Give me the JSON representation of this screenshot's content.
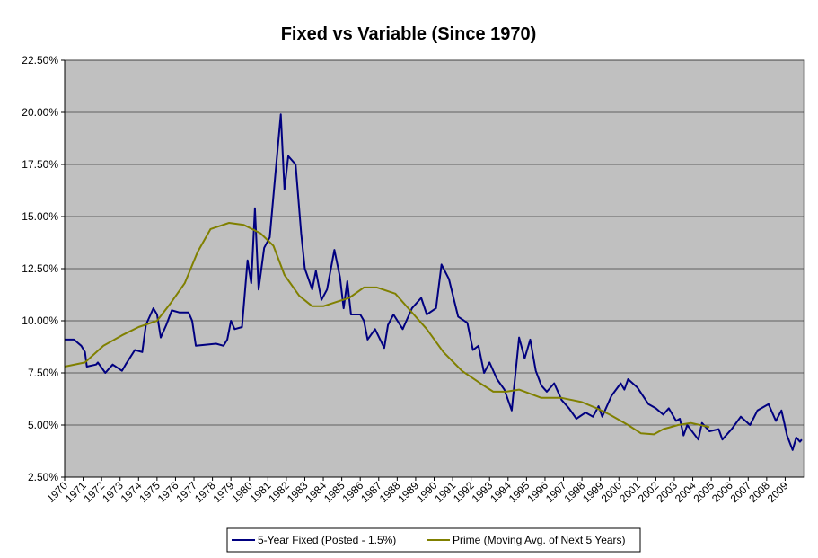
{
  "chart_data": {
    "type": "line",
    "title": "Fixed vs Variable (Since 1970)",
    "xlim": [
      1970,
      2010
    ],
    "xticks": [
      1970,
      1971,
      1972,
      1973,
      1974,
      1975,
      1976,
      1977,
      1978,
      1979,
      1980,
      1981,
      1982,
      1983,
      1984,
      1985,
      1986,
      1987,
      1988,
      1989,
      1990,
      1991,
      1992,
      1993,
      1994,
      1995,
      1996,
      1997,
      1998,
      1999,
      2000,
      2001,
      2002,
      2003,
      2004,
      2005,
      2006,
      2007,
      2008,
      2009
    ],
    "ylim": [
      2.5,
      22.5
    ],
    "yticks": [
      {
        "value": 2.5,
        "label": "2.50%"
      },
      {
        "value": 5,
        "label": "5.00%"
      },
      {
        "value": 7.5,
        "label": "7.50%"
      },
      {
        "value": 10,
        "label": "10.00%"
      },
      {
        "value": 12.5,
        "label": "12.50%"
      },
      {
        "value": 15,
        "label": "15.00%"
      },
      {
        "value": 17.5,
        "label": "17.50%"
      },
      {
        "value": 20,
        "label": "20.00%"
      },
      {
        "value": 22.5,
        "label": "22.50%"
      }
    ],
    "grid": true,
    "legend": "bottom",
    "series": [
      {
        "name": "5-Year Fixed (Posted - 1.5%)",
        "color": "#000080",
        "x": [
          1970.0,
          1970.5,
          1970.9,
          1971.1,
          1971.2,
          1971.7,
          1971.8,
          1972.2,
          1972.6,
          1973.1,
          1973.3,
          1973.8,
          1974.2,
          1974.4,
          1974.8,
          1975.0,
          1975.2,
          1975.5,
          1975.8,
          1976.2,
          1976.7,
          1976.9,
          1977.1,
          1978.2,
          1978.6,
          1978.8,
          1979.0,
          1979.2,
          1979.6,
          1979.9,
          1980.1,
          1980.3,
          1980.5,
          1980.8,
          1981.1,
          1981.4,
          1981.7,
          1981.9,
          1982.1,
          1982.5,
          1982.8,
          1983.0,
          1983.4,
          1983.6,
          1983.9,
          1984.2,
          1984.6,
          1984.9,
          1985.1,
          1985.3,
          1985.5,
          1986.0,
          1986.2,
          1986.4,
          1986.8,
          1987.3,
          1987.5,
          1987.8,
          1988.3,
          1988.5,
          1988.8,
          1989.3,
          1989.6,
          1990.1,
          1990.4,
          1990.8,
          1991.3,
          1991.8,
          1992.1,
          1992.4,
          1992.7,
          1993.0,
          1993.4,
          1993.8,
          1994.2,
          1994.6,
          1994.9,
          1995.2,
          1995.5,
          1995.8,
          1996.1,
          1996.5,
          1996.9,
          1997.3,
          1997.7,
          1998.2,
          1998.6,
          1998.9,
          1999.1,
          1999.6,
          2000.1,
          2000.3,
          2000.5,
          2001.0,
          2001.6,
          2002.0,
          2002.4,
          2002.7,
          2003.1,
          2003.3,
          2003.5,
          2003.7,
          2004.3,
          2004.5,
          2004.9,
          2005.4,
          2005.6,
          2006.1,
          2006.6,
          2007.1,
          2007.5,
          2008.1,
          2008.5,
          2008.8,
          2008.9,
          2009.1,
          2009.4,
          2009.6,
          2009.8,
          2009.9
        ],
        "values": [
          9.1,
          9.1,
          8.8,
          8.5,
          7.8,
          7.9,
          8.0,
          7.5,
          7.9,
          7.6,
          7.9,
          8.6,
          8.5,
          9.8,
          10.6,
          10.3,
          9.2,
          9.8,
          10.5,
          10.4,
          10.4,
          10.0,
          8.8,
          8.9,
          8.8,
          9.1,
          10.0,
          9.6,
          9.7,
          12.9,
          11.8,
          15.4,
          11.5,
          13.5,
          14.0,
          17.0,
          19.9,
          16.3,
          17.9,
          17.5,
          14.2,
          12.5,
          11.5,
          12.4,
          11.0,
          11.5,
          13.4,
          12.1,
          10.6,
          11.9,
          10.3,
          10.3,
          10.0,
          9.1,
          9.6,
          8.7,
          9.8,
          10.3,
          9.6,
          10.0,
          10.6,
          11.1,
          10.3,
          10.6,
          12.7,
          12.0,
          10.2,
          9.9,
          8.6,
          8.8,
          7.5,
          8.0,
          7.2,
          6.7,
          5.7,
          9.2,
          8.2,
          9.1,
          7.6,
          6.9,
          6.6,
          7.0,
          6.2,
          5.8,
          5.3,
          5.6,
          5.4,
          5.9,
          5.4,
          6.4,
          7.0,
          6.7,
          7.2,
          6.8,
          6.0,
          5.8,
          5.5,
          5.8,
          5.2,
          5.3,
          4.5,
          5.0,
          4.3,
          5.1,
          4.7,
          4.8,
          4.3,
          4.8,
          5.4,
          5.0,
          5.7,
          6.0,
          5.2,
          5.7,
          5.3,
          4.5,
          3.8,
          4.4,
          4.2,
          4.3
        ]
      },
      {
        "name": "Prime (Moving Avg. of Next 5 Years)",
        "color": "#808000",
        "x": [
          1970.0,
          1971.1,
          1972.1,
          1973.1,
          1974.0,
          1975.0,
          1975.7,
          1976.5,
          1977.2,
          1977.9,
          1978.9,
          1979.7,
          1980.6,
          1981.3,
          1981.9,
          1982.7,
          1983.4,
          1984.0,
          1984.7,
          1985.4,
          1986.2,
          1986.9,
          1987.9,
          1988.6,
          1989.6,
          1990.5,
          1991.5,
          1992.5,
          1993.2,
          1993.9,
          1994.6,
          1995.2,
          1995.8,
          1996.9,
          1998.0,
          1998.8,
          1999.5,
          2000.5,
          2001.2,
          2001.9,
          2002.4,
          2003.2,
          2003.9,
          2004.9
        ],
        "values": [
          7.8,
          8.0,
          8.8,
          9.3,
          9.7,
          10.0,
          10.8,
          11.8,
          13.3,
          14.4,
          14.7,
          14.6,
          14.2,
          13.6,
          12.2,
          11.2,
          10.7,
          10.7,
          10.9,
          11.1,
          11.6,
          11.6,
          11.3,
          10.6,
          9.6,
          8.5,
          7.6,
          7.0,
          6.6,
          6.6,
          6.7,
          6.5,
          6.3,
          6.3,
          6.1,
          5.8,
          5.5,
          5.0,
          4.6,
          4.55,
          4.8,
          5.0,
          5.1,
          4.9
        ]
      }
    ]
  }
}
